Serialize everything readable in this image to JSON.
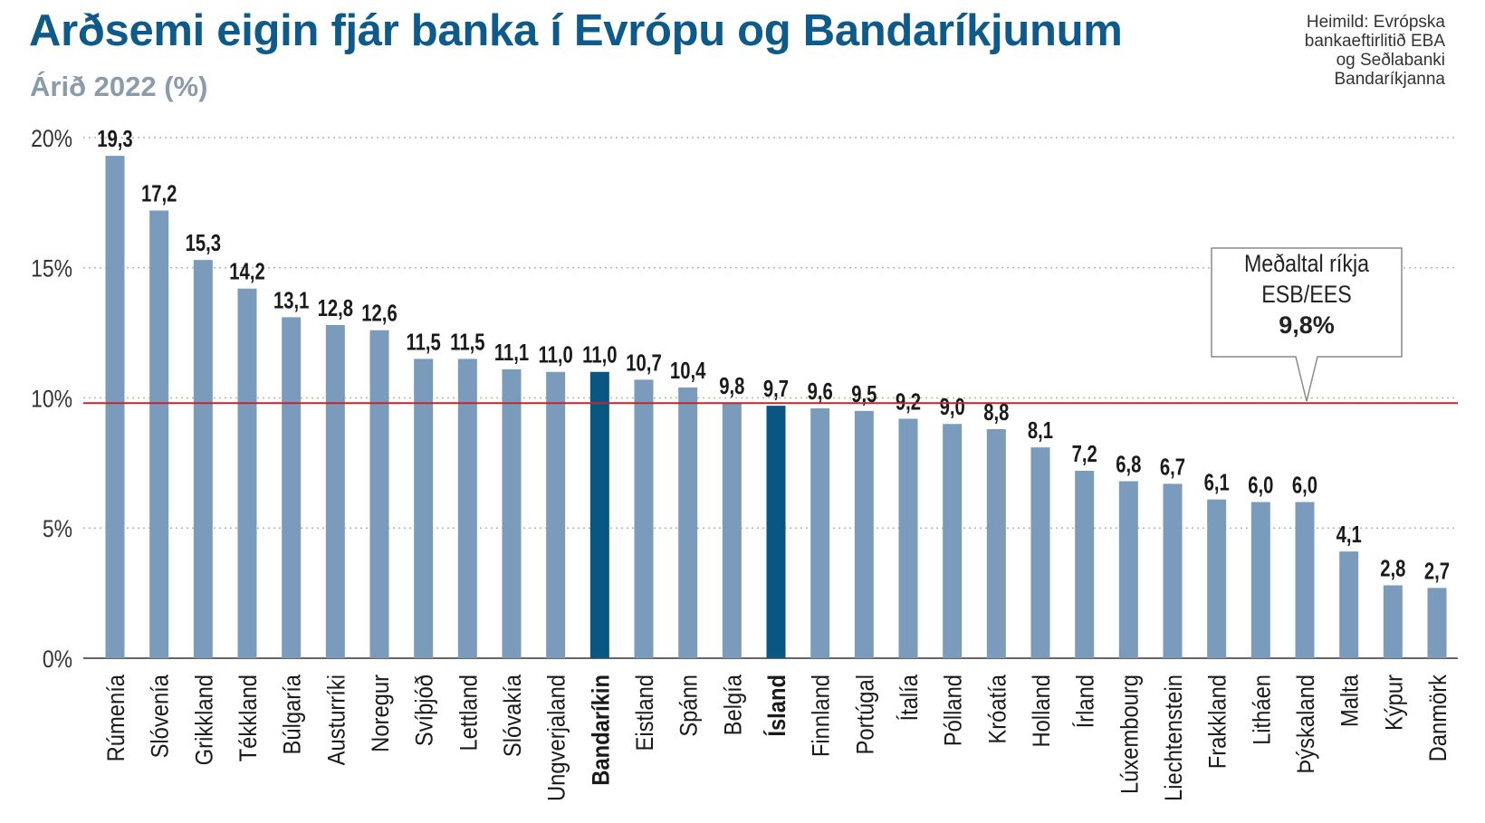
{
  "header": {
    "title": "Arðsemi eigin fjár banka í Evrópu og Bandaríkjunum",
    "subtitle": "Árið 2022 (%)",
    "source_lines": [
      "Heimild: Evrópska",
      "bankaeftirlitið EBA",
      "og Seðlabanki",
      "Bandaríkjanna"
    ]
  },
  "annotation": {
    "line1": "Meðaltal ríkja",
    "line2": "ESB/EES",
    "value": "9,8%"
  },
  "colors": {
    "bar": "#7b9bbd",
    "bar_highlight": "#0a5683",
    "title": "#0e5a8a",
    "subtitle": "#8a9bab",
    "average_line": "#c0272d",
    "grid": "#b5b5b5",
    "axis": "#666666"
  },
  "chart_data": {
    "type": "bar",
    "title": "Arðsemi eigin fjár banka í Evrópu og Bandaríkjunum",
    "subtitle": "Árið 2022 (%)",
    "categories": [
      "Rúmenía",
      "Slóvenía",
      "Grikkland",
      "Tékkland",
      "Búlgaría",
      "Austurríki",
      "Noregur",
      "Svíþjóð",
      "Lettland",
      "Slóvakía",
      "Ungverjaland",
      "Bandaríkin",
      "Eistland",
      "Spánn",
      "Belgía",
      "Ísland",
      "Finnland",
      "Portúgal",
      "Ítalía",
      "Pólland",
      "Króatía",
      "Holland",
      "Írland",
      "Lúxembourg",
      "Liechtenstein",
      "Frakkland",
      "Litháen",
      "Þýskaland",
      "Malta",
      "Kýpur",
      "Danmörk"
    ],
    "values": [
      19.3,
      17.2,
      15.3,
      14.2,
      13.1,
      12.8,
      12.6,
      11.5,
      11.5,
      11.1,
      11.0,
      11.0,
      10.7,
      10.4,
      9.8,
      9.7,
      9.6,
      9.5,
      9.2,
      9.0,
      8.8,
      8.1,
      7.2,
      6.8,
      6.7,
      6.1,
      6.0,
      6.0,
      4.1,
      2.8,
      2.7
    ],
    "value_labels": [
      "19,3",
      "17,2",
      "15,3",
      "14,2",
      "13,1",
      "12,8",
      "12,6",
      "11,5",
      "11,5",
      "11,1",
      "11,0",
      "11,0",
      "10,7",
      "10,4",
      "9,8",
      "9,7",
      "9,6",
      "9,5",
      "9,2",
      "9,0",
      "8,8",
      "8,1",
      "7,2",
      "6,8",
      "6,7",
      "6,1",
      "6,0",
      "6,0",
      "4,1",
      "2,8",
      "2,7"
    ],
    "highlighted": [
      "Bandaríkin",
      "Ísland"
    ],
    "yticks": [
      "0%",
      "5%",
      "10%",
      "15%",
      "20%"
    ],
    "ylim": [
      0,
      20
    ],
    "grid": true,
    "reference_line": {
      "value": 9.8
    }
  }
}
